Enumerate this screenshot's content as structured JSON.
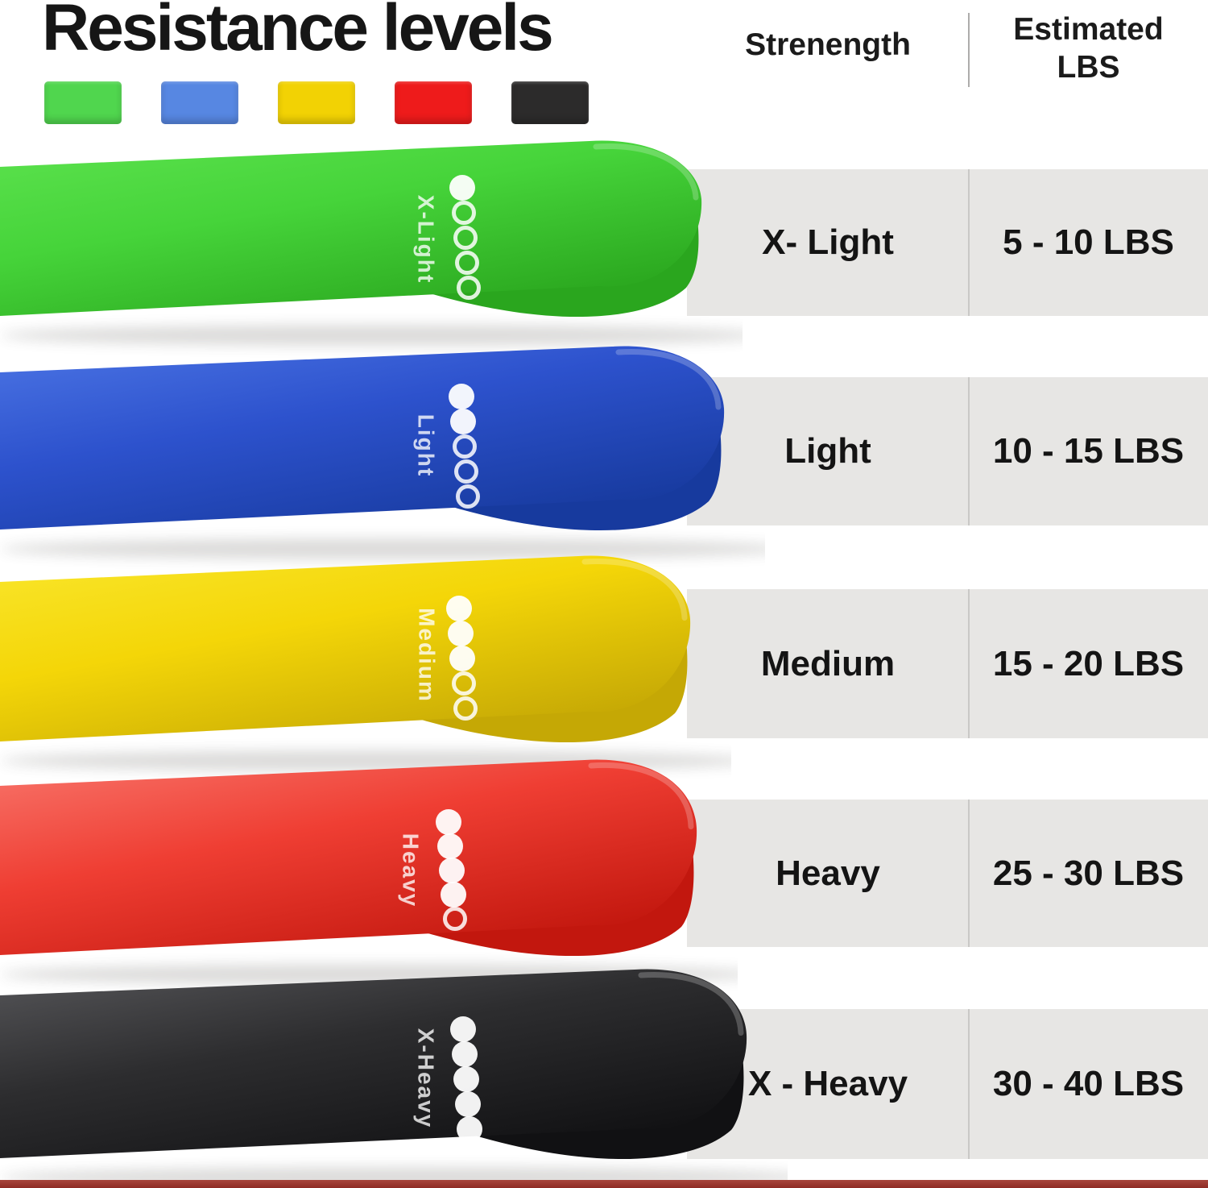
{
  "title": "Resistance levels",
  "legend_swatches": [
    {
      "name": "green",
      "color": "#50d64e"
    },
    {
      "name": "blue",
      "color": "#5787e2"
    },
    {
      "name": "yellow",
      "color": "#f2d204"
    },
    {
      "name": "red",
      "color": "#ee1b1b"
    },
    {
      "name": "black",
      "color": "#2c2b2b"
    }
  ],
  "bands": [
    {
      "label": "X-Light",
      "dots_filled": 1,
      "dots_total": 5,
      "color_light": "#5ce24e",
      "color_main": "#46d43a",
      "color_dark": "#2aa61e"
    },
    {
      "label": "Light",
      "dots_filled": 2,
      "dots_total": 5,
      "color_light": "#4b74e4",
      "color_main": "#2d52cd",
      "color_dark": "#173a9e"
    },
    {
      "label": "Medium",
      "dots_filled": 3,
      "dots_total": 5,
      "color_light": "#f9e62c",
      "color_main": "#f4d608",
      "color_dark": "#c5a805"
    },
    {
      "label": "Heavy",
      "dots_filled": 4,
      "dots_total": 5,
      "color_light": "#f8756b",
      "color_main": "#ef3e33",
      "color_dark": "#c2170e"
    },
    {
      "label": "X-Heavy",
      "dots_filled": 5,
      "dots_total": 5,
      "color_light": "#565659",
      "color_main": "#2d2d2f",
      "color_dark": "#111113"
    }
  ],
  "table": {
    "header": {
      "strength": "Strenength",
      "estimated_line1": "Estimated",
      "estimated_line2": "LBS"
    },
    "rows": [
      {
        "strength": "X- Light",
        "lbs": "5 - 10 LBS"
      },
      {
        "strength": "Light",
        "lbs": "10 - 15 LBS"
      },
      {
        "strength": "Medium",
        "lbs": "15 - 20 LBS"
      },
      {
        "strength": "Heavy",
        "lbs": "25 - 30 LBS"
      },
      {
        "strength": "X - Heavy",
        "lbs": "30 - 40 LBS"
      }
    ]
  },
  "footer_bar_color": "#8e2b24"
}
